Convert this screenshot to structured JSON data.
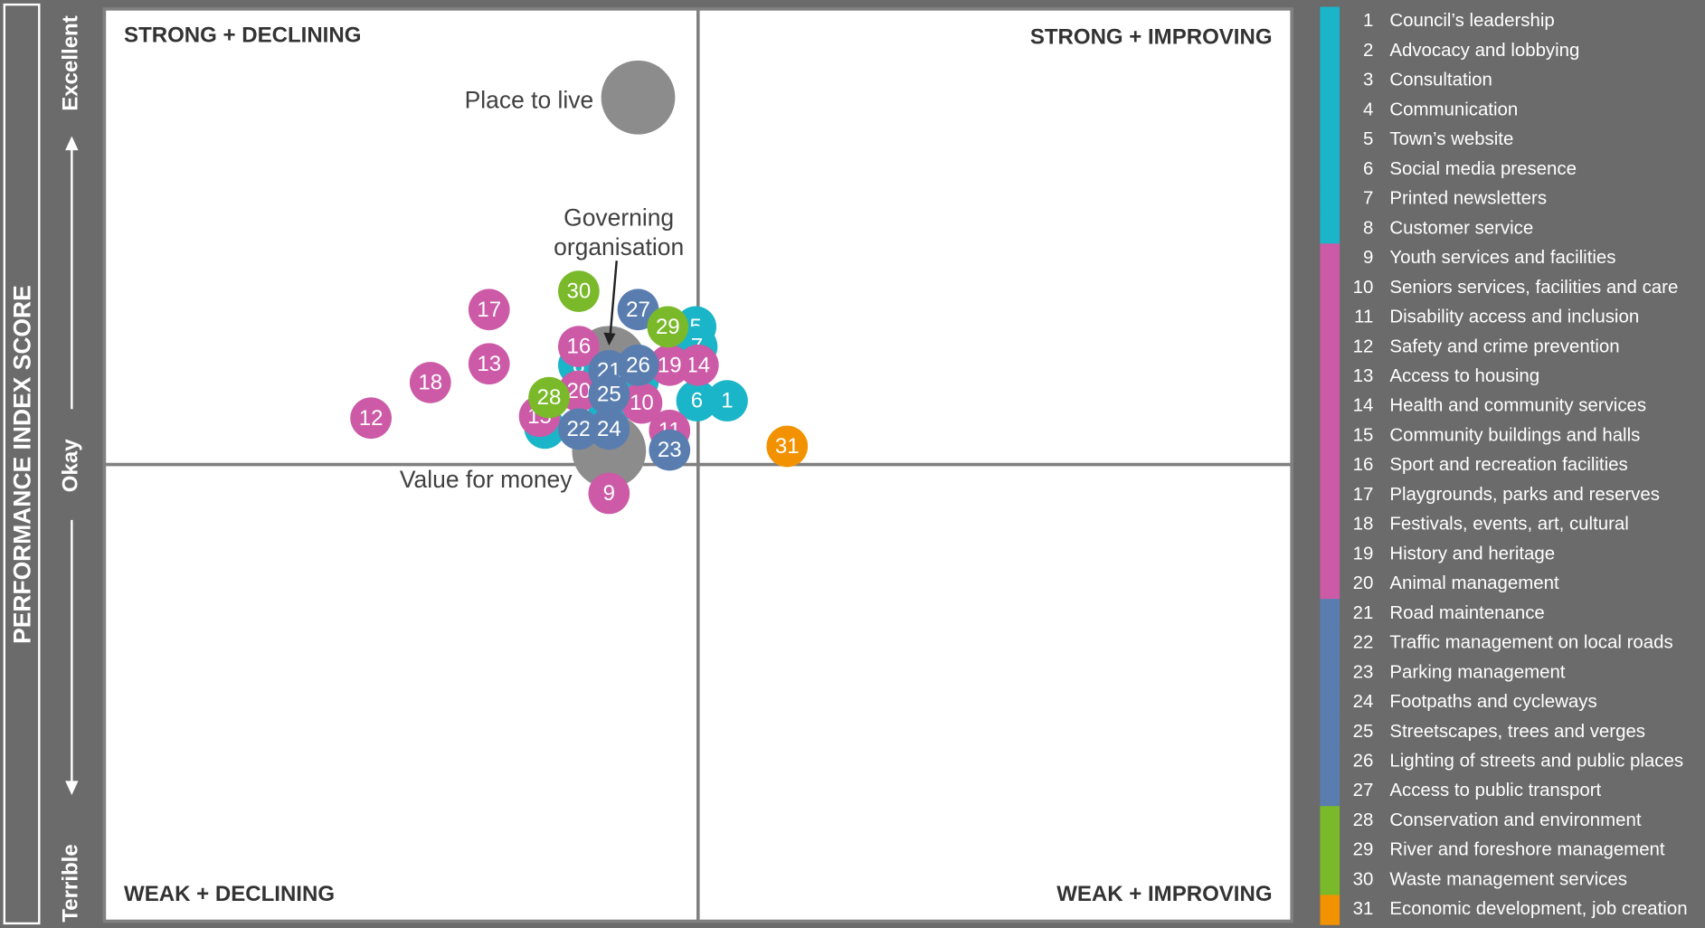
{
  "chart_data": {
    "type": "scatter",
    "y_axis_title": "PERFORMANCE INDEX SCORE",
    "y_axis_labels": [
      "Excellent",
      "Okay",
      "Terrible"
    ],
    "quadrants": {
      "top_left": "STRONG + DECLINING",
      "top_right": "STRONG + IMPROVING",
      "bottom_left": "WEAK + DECLINING",
      "bottom_right": "WEAK + IMPROVING"
    },
    "xlim": [
      -100,
      100
    ],
    "ylim": [
      -100,
      100
    ],
    "highlights": [
      {
        "label": "Place to live",
        "x": -10.1,
        "y": 80.6,
        "color": "#8c8c8c"
      },
      {
        "label_lines": [
          "Governing",
          "organisation"
        ],
        "x": -15.0,
        "y": 22.4,
        "color": "#8c8c8c"
      },
      {
        "label": "Value for money",
        "x": -15.0,
        "y": 3.1,
        "color": "#8c8c8c"
      }
    ],
    "points": [
      {
        "label": "1",
        "name": "Council’s leadership",
        "color": "#1ab5c8",
        "x": 4.9,
        "y": 14.1
      },
      {
        "label": "2",
        "name": "Advocacy and lobbying",
        "color": "#1ab5c8",
        "x": -15.0,
        "y": 11.7
      },
      {
        "label": "3",
        "name": "Consultation",
        "color": "#1ab5c8",
        "x": -25.8,
        "y": 8.1
      },
      {
        "label": "4",
        "name": "Communication",
        "color": "#1ab5c8",
        "x": -10.1,
        "y": 18.4
      },
      {
        "label": "5",
        "name": "Town’s website",
        "color": "#1ab5c8",
        "x": -0.4,
        "y": 30.3
      },
      {
        "label": "6",
        "name": "Social media presence",
        "color": "#1ab5c8",
        "x": -0.2,
        "y": 14.1
      },
      {
        "label": "7",
        "name": "Printed newsletters",
        "color": "#1ab5c8",
        "x": -0.2,
        "y": 26.0
      },
      {
        "label": "8",
        "name": "Customer service",
        "color": "#1ab5c8",
        "x": -20.1,
        "y": 21.9
      },
      {
        "label": "9",
        "name": "Youth services and facilities",
        "color": "#cc5aa6",
        "x": -15.0,
        "y": -6.2
      },
      {
        "label": "10",
        "name": "Seniors services, facilities and care",
        "color": "#cc5aa6",
        "x": -9.5,
        "y": 13.6
      },
      {
        "label": "11",
        "name": "Disability access and inclusion",
        "color": "#cc5aa6",
        "x": -4.8,
        "y": 7.6
      },
      {
        "label": "12",
        "name": "Safety and crime prevention",
        "color": "#cc5aa6",
        "x": -55.1,
        "y": 10.3
      },
      {
        "label": "13",
        "name": "Access to housing",
        "color": "#cc5aa6",
        "x": -35.2,
        "y": 22.2
      },
      {
        "label": "14",
        "name": "Health and community services",
        "color": "#cc5aa6",
        "x": 0.0,
        "y": 21.9
      },
      {
        "label": "15",
        "name": "Community buildings and halls",
        "color": "#cc5aa6",
        "x": -26.7,
        "y": 10.7
      },
      {
        "label": "16",
        "name": "Sport and recreation facilities",
        "color": "#cc5aa6",
        "x": -20.1,
        "y": 26.0
      },
      {
        "label": "17",
        "name": "Playgrounds, parks and reserves",
        "color": "#cc5aa6",
        "x": -35.2,
        "y": 34.1
      },
      {
        "label": "18",
        "name": "Festivals, events, art, cultural",
        "color": "#cc5aa6",
        "x": -45.1,
        "y": 18.1
      },
      {
        "label": "19",
        "name": "History and heritage",
        "color": "#cc5aa6",
        "x": -4.8,
        "y": 21.9
      },
      {
        "label": "20",
        "name": "Animal management",
        "color": "#cc5aa6",
        "x": -20.1,
        "y": 16.2
      },
      {
        "label": "21",
        "name": "Road maintenance",
        "color": "#5a7db0",
        "x": -15.0,
        "y": 20.7
      },
      {
        "label": "22",
        "name": "Traffic management on local roads",
        "color": "#5a7db0",
        "x": -20.1,
        "y": 7.9
      },
      {
        "label": "23",
        "name": "Parking management",
        "color": "#5a7db0",
        "x": -4.8,
        "y": 3.3
      },
      {
        "label": "24",
        "name": "Footpaths and cycleways",
        "color": "#5a7db0",
        "x": -15.0,
        "y": 7.9
      },
      {
        "label": "25",
        "name": "Streetscapes, trees and verges",
        "color": "#5a7db0",
        "x": -15.0,
        "y": 15.5
      },
      {
        "label": "26",
        "name": "Lighting of streets and public places",
        "color": "#5a7db0",
        "x": -10.1,
        "y": 21.9
      },
      {
        "label": "27",
        "name": "Access to public transport",
        "color": "#5a7db0",
        "x": -10.1,
        "y": 34.1
      },
      {
        "label": "28",
        "name": "Conservation and environment",
        "color": "#7ab929",
        "x": -25.1,
        "y": 14.8
      },
      {
        "label": "29",
        "name": "River and foreshore management",
        "color": "#7ab929",
        "x": -5.1,
        "y": 30.3
      },
      {
        "label": "30",
        "name": "Waste management services",
        "color": "#7ab929",
        "x": -20.1,
        "y": 38.1
      },
      {
        "label": "31",
        "name": "Economic development, job creation",
        "color": "#f39200",
        "x": 15.0,
        "y": 4.1
      }
    ]
  }
}
